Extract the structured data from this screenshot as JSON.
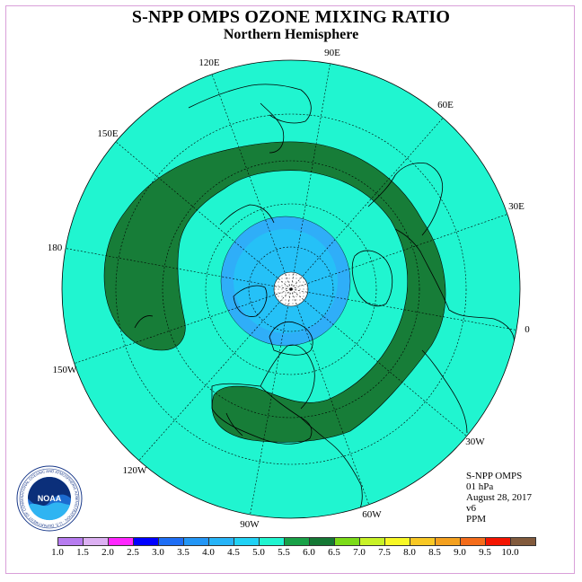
{
  "title": "S-NPP OMPS OZONE MIXING RATIO",
  "subtitle": "Northern Hemisphere",
  "map": {
    "projection": "north polar stereographic",
    "longitude_labels": [
      "90E",
      "60E",
      "30E",
      "0",
      "30W",
      "60W",
      "90W",
      "120W",
      "150W",
      "180",
      "150E",
      "120E"
    ],
    "fill_colors": {
      "background": "#20f5d0",
      "band_5_5_to_6_0": "#177d38",
      "band_4_0_to_4_5": "#1ed1f5",
      "band_3_5_to_4_0": "#2faef8",
      "no_data_pole": "#ffffff"
    }
  },
  "info": {
    "instrument": "S-NPP OMPS",
    "level": "01 hPa",
    "date": "August 28, 2017",
    "version": "v6",
    "units": "PPM"
  },
  "legend": {
    "colors": [
      "#b77cf0",
      "#dcb0f2",
      "#ff26ff",
      "#0000ff",
      "#1e6ef5",
      "#2396f6",
      "#26b4f8",
      "#20d2f5",
      "#20f5d0",
      "#18a147",
      "#147834",
      "#7bdb18",
      "#c8f227",
      "#f8f826",
      "#f8c824",
      "#f4a01e",
      "#f46c1a",
      "#f41400",
      "#825a3c"
    ],
    "labels": [
      "1.0",
      "1.5",
      "2.0",
      "2.5",
      "3.0",
      "3.5",
      "4.0",
      "4.5",
      "5.0",
      "5.5",
      "6.0",
      "6.5",
      "7.0",
      "7.5",
      "8.0",
      "8.5",
      "9.0",
      "9.5",
      "10.0"
    ]
  },
  "logo": {
    "text": "NOAA",
    "ring_text": "NATIONAL OCEANIC AND ATMOSPHERIC ADMINISTRATION · U.S. DEPARTMENT OF COMMERCE"
  }
}
